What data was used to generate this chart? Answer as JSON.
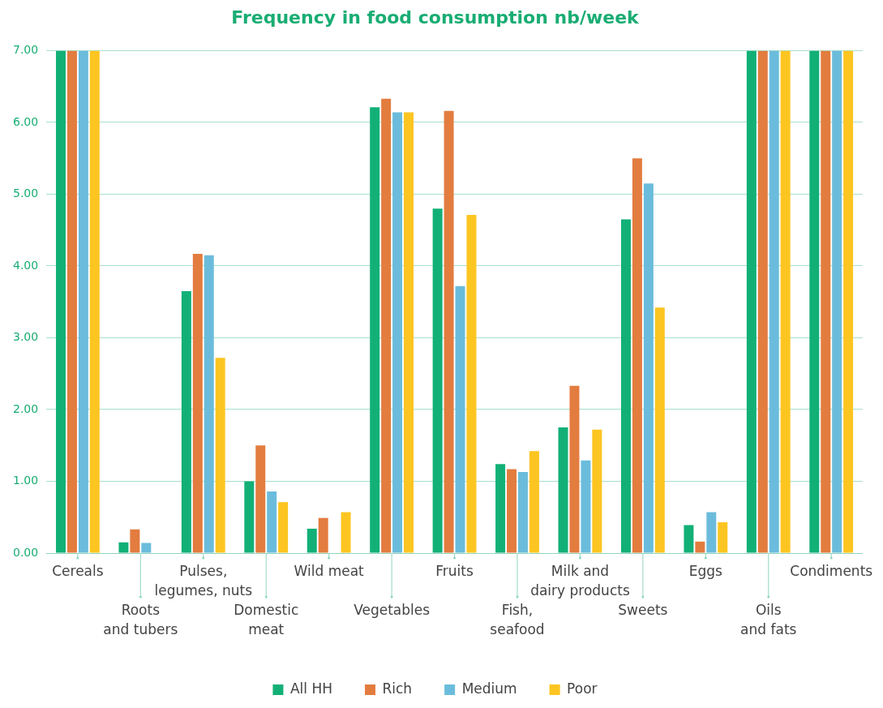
{
  "chart_data": {
    "type": "bar",
    "title": "Frequency in food consumption nb/week",
    "categories": [
      "Cereals",
      "Roots\nand tubers",
      "Pulses,\nlegumes, nuts",
      "Domestic\nmeat",
      "Wild meat",
      "Vegetables",
      "Fruits",
      "Fish,\nseafood",
      "Milk and\ndairy products",
      "Sweets",
      "Eggs",
      "Oils\nand fats",
      "Condiments"
    ],
    "series": [
      {
        "name": "All HH",
        "color": "#12b077",
        "values": [
          7,
          0.15,
          3.65,
          1.0,
          0.34,
          6.21,
          4.8,
          1.24,
          1.75,
          4.65,
          0.39,
          7,
          7
        ]
      },
      {
        "name": "Rich",
        "color": "#e37c3f",
        "values": [
          7,
          0.33,
          4.17,
          1.5,
          0.49,
          6.33,
          6.16,
          1.17,
          2.33,
          5.5,
          0.16,
          7,
          7
        ]
      },
      {
        "name": "Medium",
        "color": "#6bbcdc",
        "values": [
          7,
          0.14,
          4.15,
          0.86,
          null,
          6.14,
          3.72,
          1.13,
          1.29,
          5.15,
          0.57,
          7,
          7
        ]
      },
      {
        "name": "Poor",
        "color": "#fdc521",
        "values": [
          7,
          null,
          2.72,
          0.71,
          0.57,
          6.14,
          4.71,
          1.42,
          1.72,
          3.42,
          0.43,
          7,
          7
        ]
      }
    ],
    "ylim": [
      0,
      7
    ],
    "yticks": [
      {
        "value": 0,
        "label": "0.00"
      },
      {
        "value": 1,
        "label": "1.00"
      },
      {
        "value": 2,
        "label": "2.00"
      },
      {
        "value": 3,
        "label": "3.00"
      },
      {
        "value": 4,
        "label": "4.00"
      },
      {
        "value": 5,
        "label": "5.00"
      },
      {
        "value": 6,
        "label": "6.00"
      },
      {
        "value": 7,
        "label": "7.00"
      }
    ],
    "grid": "y",
    "legend": "bottom"
  }
}
